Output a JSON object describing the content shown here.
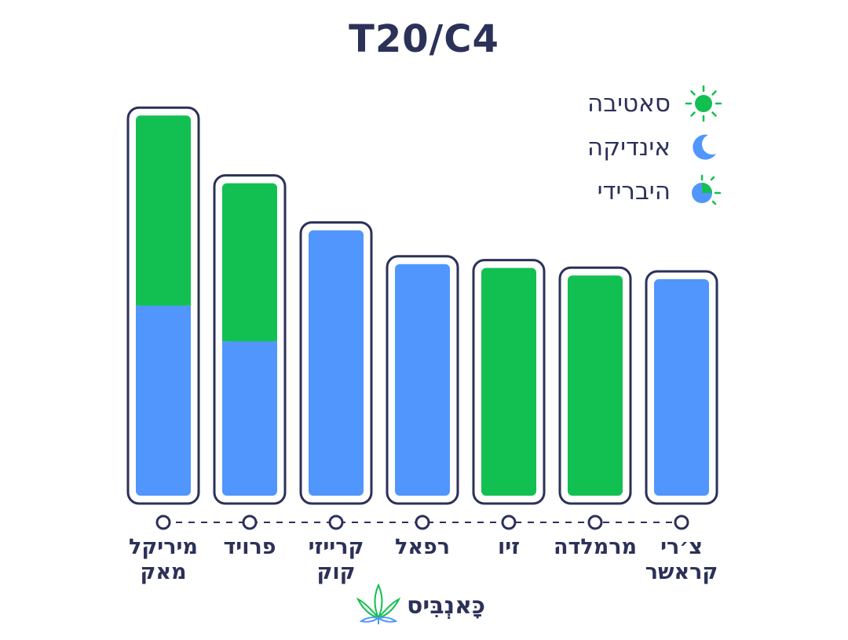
{
  "colors": {
    "sativa": "#12c051",
    "indica": "#5096fd",
    "frame": "#2b3158",
    "text": "#2b3158"
  },
  "legend": [
    {
      "key": "sativa",
      "label": "סאטיבה",
      "icon": "sun-icon"
    },
    {
      "key": "indica",
      "label": "אינדיקה",
      "icon": "moon-icon"
    },
    {
      "key": "hybrid",
      "label": "היברידי",
      "icon": "half-sun-moon-icon"
    }
  ],
  "brand": {
    "name": "כָּאנְבִּיס",
    "icon": "cannabis-leaf-icon"
  },
  "chart_data": {
    "type": "bar",
    "title": "T20/C4",
    "categories": [
      "מיריקל\nמאק",
      "פרויד",
      "קרייזי\nקוק",
      "רפאל",
      "זיו",
      "מרמלדה",
      "צ׳רי\nקראשר"
    ],
    "series": [
      {
        "name": "אינדיקה",
        "key": "indica",
        "values": [
          50.5,
          41,
          70.5,
          61.5,
          0,
          0,
          57.5
        ]
      },
      {
        "name": "סאטיבה",
        "key": "sativa",
        "values": [
          50.5,
          42,
          0,
          0,
          60.5,
          58.5,
          0
        ]
      }
    ],
    "ylim": [
      0,
      101
    ],
    "xlabel": "",
    "ylabel": "",
    "grid": false,
    "legend_position": "top-right"
  }
}
